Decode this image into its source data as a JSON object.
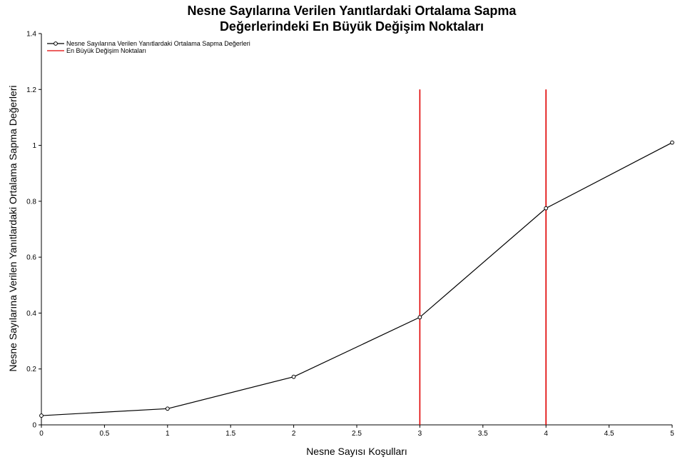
{
  "chart_data": {
    "type": "line",
    "title": [
      "Nesne Sayılarına Verilen Yanıtlardaki Ortalama Sapma",
      "Değerlerindeki En Büyük Değişim Noktaları"
    ],
    "xlabel": "Nesne Sayısı Koşulları",
    "ylabel": "Nesne Sayılarına Verilen Yanıtlardaki Ortalama Sapma Değerleri",
    "xlim": [
      0,
      5
    ],
    "ylim": [
      0,
      1.4
    ],
    "xticks": [
      "0",
      "0.5",
      "1",
      "1.5",
      "2",
      "2.5",
      "3",
      "3.5",
      "4",
      "4.5",
      "5"
    ],
    "yticks": [
      "0",
      "0.2",
      "0.4",
      "0.6",
      "0.8",
      "1",
      "1.2",
      "1.4"
    ],
    "grid": false,
    "legend_position": "top-left",
    "series": [
      {
        "name": "Nesne Sayılarına Verilen Yanıtlardaki Ortalama Sapma Değerleri",
        "color": "#000000",
        "marker": "circle",
        "x": [
          0,
          1,
          2,
          3,
          4,
          5
        ],
        "y": [
          0.033,
          0.058,
          0.172,
          0.385,
          0.775,
          1.01
        ]
      }
    ],
    "change_points": {
      "name": "En Büyük Değişim Noktaları",
      "color": "#e00000",
      "x": [
        3,
        4
      ],
      "y_range": [
        0,
        1.2
      ]
    }
  }
}
